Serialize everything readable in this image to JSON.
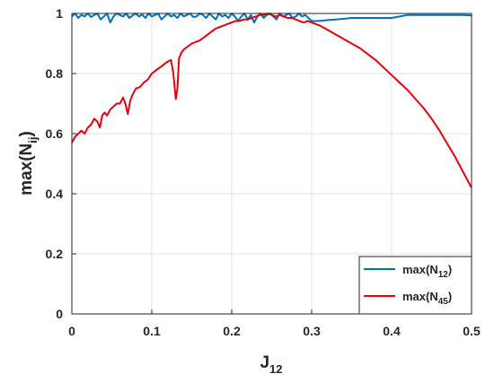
{
  "chart_data": {
    "type": "line",
    "xlabel": {
      "base": "J",
      "sub": "12"
    },
    "ylabel": {
      "base": "max(N",
      "sub": "ij",
      "tail": ")"
    },
    "xlim": [
      0,
      0.5
    ],
    "ylim": [
      0,
      1
    ],
    "xticks": [
      "0",
      "0.1",
      "0.2",
      "0.3",
      "0.4",
      "0.5"
    ],
    "yticks": [
      "0",
      "0.2",
      "0.4",
      "0.6",
      "0.8",
      "1"
    ],
    "grid": true,
    "legend_position": "bottom-right",
    "series": [
      {
        "legend": {
          "base": "max(N",
          "sub": "12",
          "tail": ")"
        },
        "color": "#0072BD",
        "x": [
          0,
          0.004,
          0.008,
          0.012,
          0.016,
          0.02,
          0.024,
          0.028,
          0.032,
          0.036,
          0.04,
          0.044,
          0.048,
          0.052,
          0.056,
          0.06,
          0.064,
          0.068,
          0.072,
          0.076,
          0.08,
          0.084,
          0.088,
          0.092,
          0.096,
          0.1,
          0.104,
          0.108,
          0.112,
          0.116,
          0.12,
          0.124,
          0.128,
          0.132,
          0.136,
          0.14,
          0.144,
          0.148,
          0.152,
          0.156,
          0.16,
          0.164,
          0.168,
          0.172,
          0.176,
          0.18,
          0.184,
          0.188,
          0.192,
          0.196,
          0.2,
          0.204,
          0.208,
          0.212,
          0.216,
          0.22,
          0.224,
          0.228,
          0.232,
          0.236,
          0.24,
          0.244,
          0.248,
          0.252,
          0.256,
          0.26,
          0.264,
          0.268,
          0.272,
          0.276,
          0.28,
          0.284,
          0.288,
          0.292,
          0.296,
          0.3,
          0.31,
          0.32,
          0.33,
          0.34,
          0.35,
          0.36,
          0.37,
          0.38,
          0.39,
          0.4,
          0.41,
          0.42,
          0.43,
          0.44,
          0.45,
          0.46,
          0.47,
          0.48,
          0.49,
          0.5
        ],
        "y": [
          0.99,
          1.0,
          0.985,
          0.995,
          0.99,
          1.0,
          0.988,
          0.995,
          1.0,
          0.98,
          0.99,
          1.0,
          0.97,
          0.99,
          1.0,
          0.995,
          0.99,
          1.0,
          0.985,
          0.993,
          1.0,
          0.99,
          0.996,
          0.985,
          1.0,
          0.99,
          0.995,
          1.0,
          0.98,
          0.99,
          1.0,
          0.99,
          0.995,
          0.985,
          1.0,
          0.99,
          0.995,
          1.0,
          0.988,
          0.99,
          1.0,
          0.995,
          0.985,
          1.0,
          0.99,
          0.98,
          1.0,
          0.99,
          0.995,
          0.985,
          1.0,
          0.99,
          0.975,
          0.99,
          1.0,
          0.98,
          0.995,
          0.97,
          0.99,
          1.0,
          0.985,
          0.995,
          1.0,
          0.99,
          0.98,
          1.0,
          0.99,
          0.995,
          1.0,
          0.985,
          0.99,
          1.0,
          0.99,
          0.995,
          0.985,
          0.975,
          0.975,
          0.978,
          0.98,
          0.982,
          0.985,
          0.985,
          0.985,
          0.985,
          0.985,
          0.985,
          0.99,
          0.995,
          0.995,
          0.995,
          0.995,
          0.995,
          0.995,
          0.995,
          0.995,
          0.993
        ]
      },
      {
        "legend": {
          "base": "max(N",
          "sub": "45",
          "tail": ")"
        },
        "color": "#E8000B",
        "x": [
          0,
          0.004,
          0.008,
          0.012,
          0.016,
          0.02,
          0.024,
          0.028,
          0.032,
          0.035,
          0.038,
          0.041,
          0.044,
          0.048,
          0.052,
          0.056,
          0.06,
          0.064,
          0.067,
          0.07,
          0.073,
          0.076,
          0.08,
          0.085,
          0.09,
          0.095,
          0.1,
          0.105,
          0.11,
          0.115,
          0.12,
          0.124,
          0.127,
          0.13,
          0.132,
          0.134,
          0.137,
          0.14,
          0.145,
          0.15,
          0.155,
          0.16,
          0.165,
          0.17,
          0.175,
          0.18,
          0.185,
          0.19,
          0.195,
          0.2,
          0.205,
          0.21,
          0.215,
          0.22,
          0.225,
          0.23,
          0.235,
          0.24,
          0.245,
          0.25,
          0.255,
          0.26,
          0.265,
          0.27,
          0.275,
          0.28,
          0.285,
          0.29,
          0.295,
          0.3,
          0.31,
          0.32,
          0.33,
          0.34,
          0.35,
          0.36,
          0.37,
          0.38,
          0.39,
          0.4,
          0.41,
          0.42,
          0.43,
          0.44,
          0.45,
          0.46,
          0.47,
          0.48,
          0.49,
          0.5
        ],
        "y": [
          0.57,
          0.59,
          0.6,
          0.61,
          0.6,
          0.62,
          0.63,
          0.65,
          0.64,
          0.62,
          0.66,
          0.67,
          0.66,
          0.68,
          0.69,
          0.7,
          0.7,
          0.72,
          0.7,
          0.665,
          0.71,
          0.73,
          0.75,
          0.755,
          0.77,
          0.78,
          0.8,
          0.81,
          0.82,
          0.83,
          0.84,
          0.845,
          0.8,
          0.715,
          0.75,
          0.85,
          0.87,
          0.88,
          0.89,
          0.9,
          0.905,
          0.91,
          0.92,
          0.93,
          0.94,
          0.95,
          0.955,
          0.96,
          0.965,
          0.97,
          0.975,
          0.975,
          0.98,
          0.98,
          0.985,
          0.99,
          0.995,
          0.995,
          1.0,
          0.995,
          0.99,
          0.995,
          0.99,
          0.985,
          0.985,
          0.98,
          0.975,
          0.97,
          0.975,
          0.97,
          0.96,
          0.945,
          0.93,
          0.915,
          0.9,
          0.885,
          0.865,
          0.845,
          0.82,
          0.795,
          0.77,
          0.745,
          0.715,
          0.685,
          0.65,
          0.61,
          0.565,
          0.52,
          0.47,
          0.42
        ]
      }
    ]
  }
}
